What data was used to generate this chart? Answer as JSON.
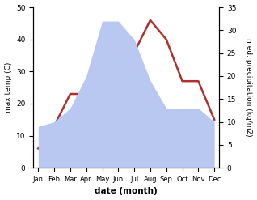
{
  "months": [
    "Jan",
    "Feb",
    "Mar",
    "Apr",
    "May",
    "Jun",
    "Jul",
    "Aug",
    "Sep",
    "Oct",
    "Nov",
    "Dec"
  ],
  "temperature": [
    6,
    13,
    23,
    23,
    26,
    36,
    36,
    46,
    40,
    27,
    27,
    15
  ],
  "precipitation": [
    9,
    10,
    13,
    20,
    32,
    32,
    28,
    19,
    13,
    13,
    13,
    10
  ],
  "temp_ylim": [
    0,
    50
  ],
  "precip_ylim": [
    0,
    35
  ],
  "temp_color": "#b03030",
  "precip_color_fill": "#b8c8f0",
  "xlabel": "date (month)",
  "ylabel_left": "max temp (C)",
  "ylabel_right": "med. precipitation (kg/m2)",
  "temp_yticks": [
    0,
    10,
    20,
    30,
    40,
    50
  ],
  "precip_yticks": [
    0,
    5,
    10,
    15,
    20,
    25,
    30,
    35
  ],
  "figsize": [
    3.18,
    2.47
  ],
  "dpi": 100
}
